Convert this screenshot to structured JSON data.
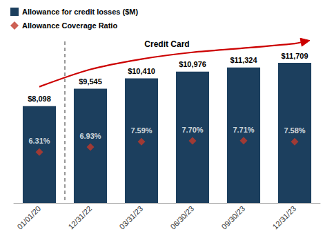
{
  "chart_data": {
    "type": "bar",
    "categories": [
      "01/01/20",
      "12/31/22",
      "03/31/23",
      "06/30/23",
      "09/30/23",
      "12/31/23"
    ],
    "series": [
      {
        "name": "Allowance for credit losses ($M)",
        "type": "bar",
        "color": "#1c3f5e",
        "values": [
          8098,
          9545,
          10410,
          10976,
          11324,
          11709
        ],
        "value_labels": [
          "$8,098",
          "$9,545",
          "$10,410",
          "$10,976",
          "$11,324",
          "$11,709"
        ]
      },
      {
        "name": "Allowance Coverage Ratio",
        "type": "scatter",
        "marker": "diamond",
        "color": "#c0392b",
        "axis": "y2",
        "values": [
          6.31,
          6.93,
          7.59,
          7.7,
          7.71,
          7.58
        ],
        "value_labels": [
          "6.31%",
          "6.93%",
          "7.59%",
          "7.70%",
          "7.71%",
          "7.58%"
        ]
      }
    ],
    "ylim": [
      0,
      13500
    ],
    "y2lim": [
      0,
      20
    ],
    "annotation": "Credit Card",
    "data_labels": true,
    "tick_labels": "x",
    "legend": "upper left",
    "grid": false
  }
}
